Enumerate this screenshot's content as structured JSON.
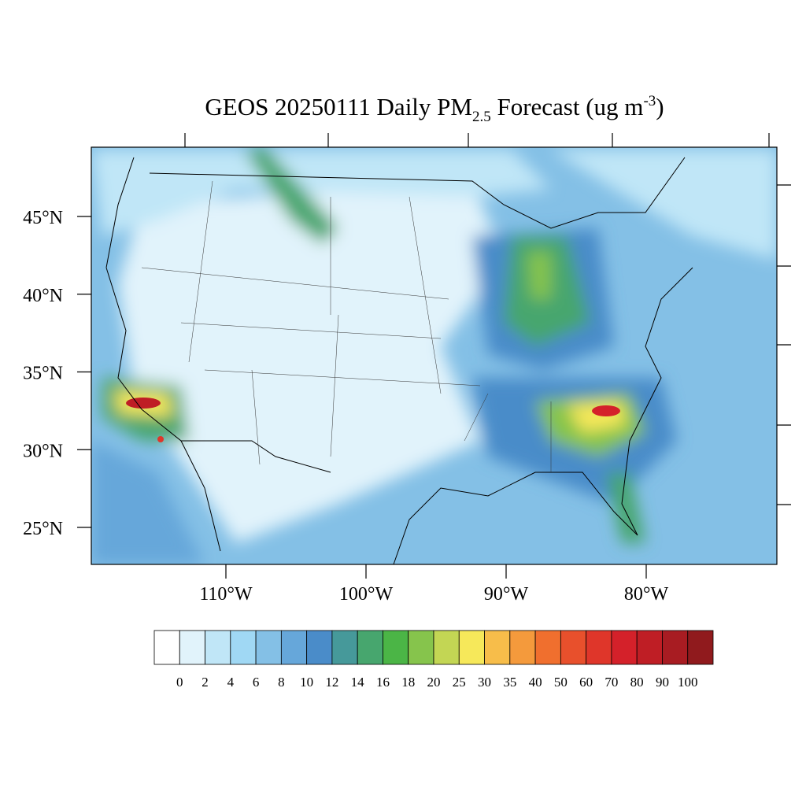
{
  "title": {
    "main": "GEOS 20250111 Daily PM",
    "subscript": "2.5",
    "middle": " Forecast (ug m",
    "superscript": "-3",
    "end": ")"
  },
  "map": {
    "lat_ticks": [
      {
        "value": 45,
        "label": "45°N"
      },
      {
        "value": 40,
        "label": "40°N"
      },
      {
        "value": 35,
        "label": "35°N"
      },
      {
        "value": 30,
        "label": "30°N"
      },
      {
        "value": 25,
        "label": "25°N"
      }
    ],
    "lon_ticks": [
      {
        "value": -110,
        "label": "110°W"
      },
      {
        "value": -100,
        "label": "100°W"
      },
      {
        "value": -90,
        "label": "90°W"
      },
      {
        "value": -80,
        "label": "80°W"
      }
    ]
  },
  "colorbar": {
    "levels": [
      0,
      2,
      4,
      6,
      8,
      10,
      12,
      14,
      16,
      18,
      20,
      25,
      30,
      35,
      40,
      50,
      60,
      70,
      80,
      90,
      100
    ],
    "colors": [
      "#ffffff",
      "#e1f3fb",
      "#c0e6f7",
      "#a0d8f4",
      "#84c0e6",
      "#66a7da",
      "#4a8cc9",
      "#46999a",
      "#47a66e",
      "#4bb546",
      "#86c44c",
      "#c3d654",
      "#f6e85a",
      "#f7bd4a",
      "#f49a3c",
      "#f06f2e",
      "#e8502c",
      "#df362a",
      "#d4212a",
      "#bf1e25",
      "#a81c22",
      "#901a1d"
    ]
  }
}
